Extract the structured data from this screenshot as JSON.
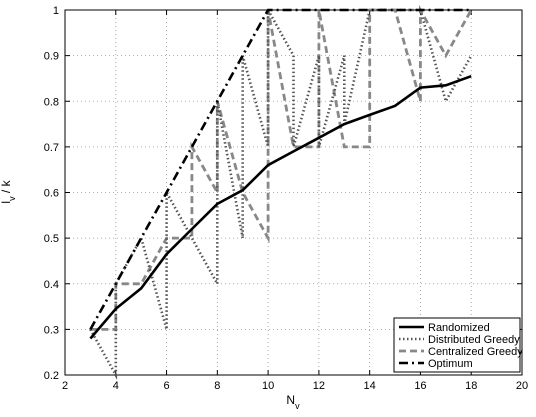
{
  "chart_data": {
    "type": "line",
    "xlabel": "N_v",
    "ylabel": "l_v / k",
    "xlim": [
      2,
      20
    ],
    "ylim": [
      0.2,
      1.0
    ],
    "xticks": [
      2,
      4,
      6,
      8,
      10,
      12,
      14,
      16,
      18,
      20
    ],
    "yticks": [
      0.2,
      0.3,
      0.4,
      0.5,
      0.6,
      0.7,
      0.8,
      0.9,
      1.0
    ],
    "xtick_labels": [
      "2",
      "4",
      "6",
      "8",
      "10",
      "12",
      "14",
      "16",
      "18",
      "20"
    ],
    "ytick_labels": [
      "0.2",
      "0.3",
      "0.4",
      "0.5",
      "0.6",
      "0.7",
      "0.8",
      "0.9",
      "1"
    ],
    "grid": true,
    "legend_position": "bottom-right",
    "series": [
      {
        "name": "Randomized",
        "style": "solid",
        "color": "#000000",
        "x": [
          3,
          4,
          5,
          6,
          7,
          8,
          9,
          10,
          11,
          12,
          13,
          14,
          15,
          16,
          17,
          18
        ],
        "y": [
          0.28,
          0.345,
          0.39,
          0.465,
          0.52,
          0.575,
          0.605,
          0.66,
          0.69,
          0.72,
          0.75,
          0.77,
          0.79,
          0.83,
          0.835,
          0.855
        ]
      },
      {
        "name": "Distributed Greedy",
        "style": "dotted",
        "color": "#555555",
        "x": [
          3,
          4,
          4,
          5,
          6,
          6,
          7,
          8,
          8,
          9,
          9,
          10,
          10,
          11,
          11,
          12,
          12,
          13,
          13,
          14,
          15,
          16,
          17,
          18
        ],
        "y": [
          0.3,
          0.2,
          0.4,
          0.5,
          0.3,
          0.6,
          0.5,
          0.4,
          0.8,
          0.5,
          0.9,
          0.7,
          1.0,
          0.9,
          0.7,
          0.9,
          0.7,
          0.9,
          0.75,
          1.0,
          1.0,
          1.0,
          0.8,
          0.9
        ]
      },
      {
        "name": "Centralized Greedy",
        "style": "dashed",
        "color": "#888888",
        "x": [
          3,
          4,
          4,
          5,
          6,
          7,
          7,
          8,
          8,
          9,
          10,
          10,
          11,
          12,
          12,
          13,
          14,
          14,
          15,
          16,
          16,
          17,
          18
        ],
        "y": [
          0.3,
          0.3,
          0.4,
          0.4,
          0.5,
          0.5,
          0.7,
          0.6,
          0.8,
          0.6,
          0.5,
          1.0,
          0.7,
          0.7,
          1.0,
          0.7,
          0.7,
          1.0,
          1.0,
          0.8,
          1.0,
          0.9,
          1.0
        ]
      },
      {
        "name": "Optimum",
        "style": "dashdot",
        "color": "#000000",
        "x": [
          3,
          4,
          5,
          6,
          7,
          8,
          9,
          10,
          11,
          12,
          13,
          14,
          15,
          16,
          17,
          18
        ],
        "y": [
          0.3,
          0.4,
          0.5,
          0.6,
          0.7,
          0.8,
          0.9,
          1.0,
          1.0,
          1.0,
          1.0,
          1.0,
          1.0,
          1.0,
          1.0,
          1.0
        ]
      }
    ]
  }
}
